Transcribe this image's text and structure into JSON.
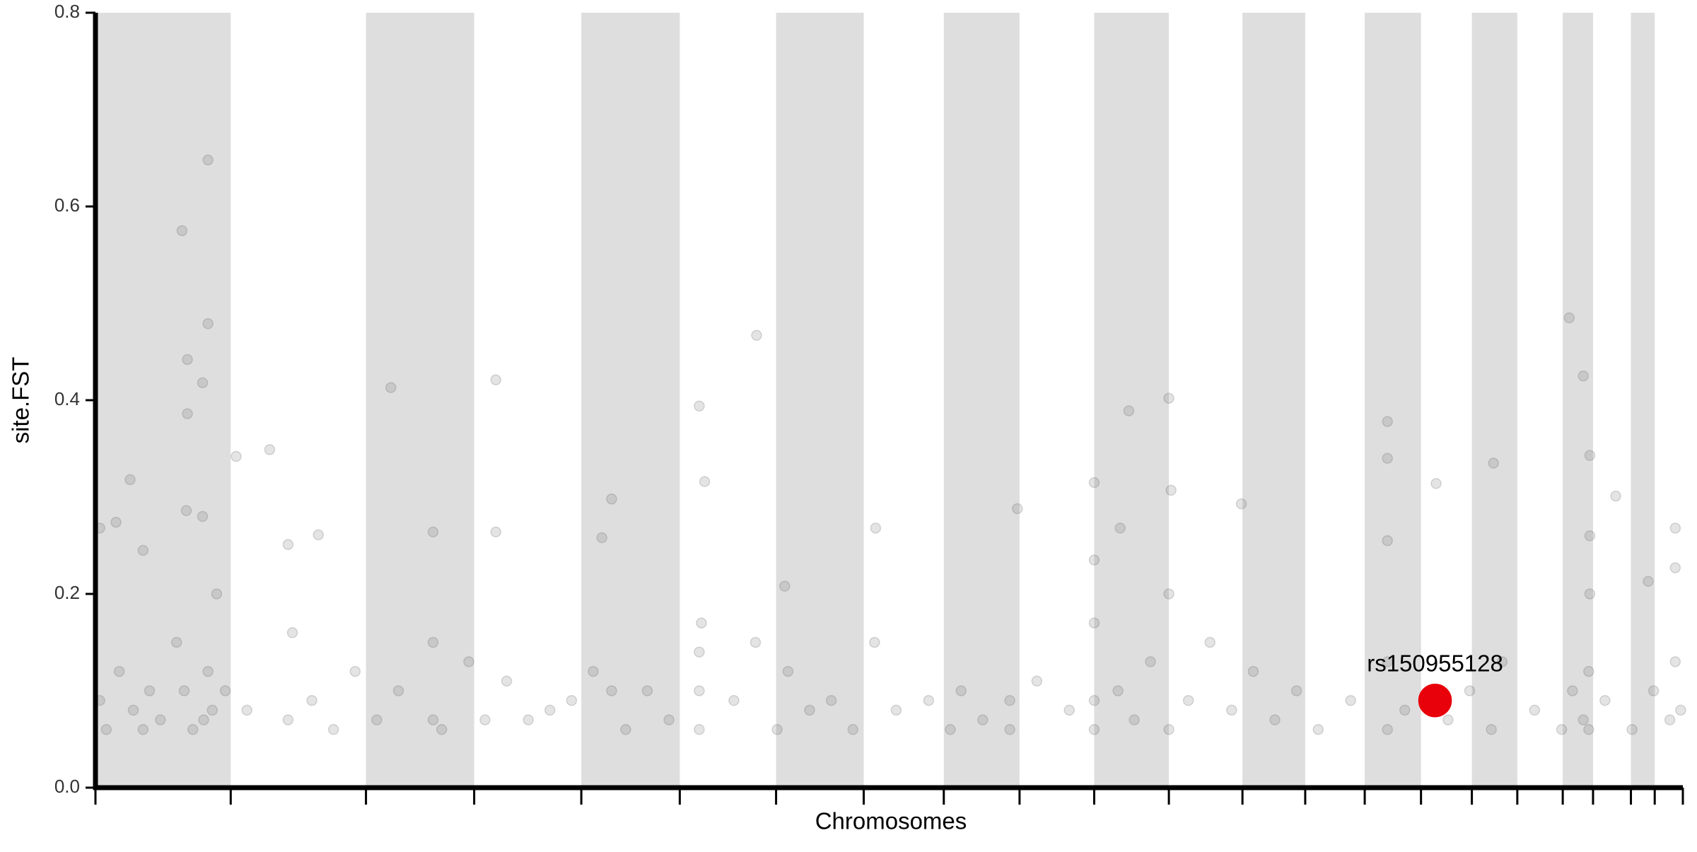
{
  "chart_data": {
    "type": "scatter",
    "ylabel": "site.FST",
    "xlabel": "Chromosomes",
    "xlim": [
      0,
      1467
    ],
    "xticks": [
      0,
      125,
      250,
      350,
      449,
      540,
      629,
      710,
      784,
      854,
      923,
      992,
      1060,
      1118,
      1173,
      1225,
      1272,
      1314,
      1356,
      1384,
      1419,
      1441,
      1467
    ],
    "ylim": [
      0,
      0.8
    ],
    "yticks": [
      {
        "value": 0,
        "label": "0.0"
      },
      0.2,
      0.4,
      0.6,
      0.8
    ],
    "band_color": "#dedede",
    "series": [
      {
        "color": "#555555",
        "x": [
          80,
          104,
          104,
          85,
          99,
          85,
          84,
          99,
          32,
          19,
          4,
          44,
          130,
          161,
          178,
          206,
          273,
          312,
          370,
          370,
          477,
          468,
          558,
          563,
          611,
          637,
          721,
          852,
          923,
          955,
          992,
          994,
          1059,
          1194,
          1194,
          1239,
          1292,
          1362,
          1375,
          1381,
          1405,
          1460,
          1460,
          1435,
          947,
          923,
          1194,
          4,
          10,
          22,
          35,
          44,
          50,
          60,
          75,
          82,
          90,
          100,
          104,
          108,
          112,
          120,
          140,
          178,
          182,
          200,
          220,
          240,
          260,
          280,
          312,
          312,
          320,
          345,
          360,
          380,
          400,
          420,
          440,
          460,
          477,
          490,
          510,
          530,
          558,
          558,
          558,
          560,
          590,
          610,
          630,
          640,
          660,
          680,
          700,
          720,
          740,
          770,
          790,
          800,
          820,
          845,
          845,
          870,
          900,
          923,
          923,
          923,
          945,
          960,
          975,
          992,
          992,
          1010,
          1030,
          1050,
          1070,
          1090,
          1110,
          1130,
          1160,
          1194,
          1194,
          1210,
          1250,
          1270,
          1290,
          1300,
          1330,
          1355,
          1365,
          1375,
          1380,
          1380,
          1381,
          1381,
          1395,
          1420,
          1440,
          1455,
          1460,
          1465
        ],
        "values": [
          0.575,
          0.648,
          0.479,
          0.442,
          0.418,
          0.386,
          0.286,
          0.28,
          0.318,
          0.274,
          0.268,
          0.245,
          0.342,
          0.349,
          0.251,
          0.261,
          0.413,
          0.264,
          0.421,
          0.264,
          0.298,
          0.258,
          0.394,
          0.316,
          0.467,
          0.208,
          0.268,
          0.288,
          0.315,
          0.389,
          0.402,
          0.307,
          0.293,
          0.378,
          0.34,
          0.314,
          0.335,
          0.485,
          0.425,
          0.343,
          0.301,
          0.268,
          0.227,
          0.213,
          0.268,
          0.235,
          0.255,
          0.09,
          0.06,
          0.12,
          0.08,
          0.06,
          0.1,
          0.07,
          0.15,
          0.1,
          0.06,
          0.07,
          0.12,
          0.08,
          0.2,
          0.1,
          0.08,
          0.07,
          0.16,
          0.09,
          0.06,
          0.12,
          0.07,
          0.1,
          0.07,
          0.15,
          0.06,
          0.13,
          0.07,
          0.11,
          0.07,
          0.08,
          0.09,
          0.12,
          0.1,
          0.06,
          0.1,
          0.07,
          0.06,
          0.1,
          0.14,
          0.17,
          0.09,
          0.15,
          0.06,
          0.12,
          0.08,
          0.09,
          0.06,
          0.15,
          0.08,
          0.09,
          0.06,
          0.1,
          0.07,
          0.06,
          0.09,
          0.11,
          0.08,
          0.06,
          0.09,
          0.17,
          0.1,
          0.07,
          0.13,
          0.06,
          0.2,
          0.09,
          0.15,
          0.08,
          0.12,
          0.07,
          0.1,
          0.06,
          0.09,
          0.06,
          0.13,
          0.08,
          0.07,
          0.1,
          0.06,
          0.13,
          0.08,
          0.06,
          0.1,
          0.07,
          0.06,
          0.12,
          0.2,
          0.26,
          0.09,
          0.06,
          0.1,
          0.07,
          0.13,
          0.08
        ]
      },
      {
        "color": "#e8000b",
        "x": [
          1238
        ],
        "values": [
          0.09
        ],
        "labels": [
          "rs150955128"
        ]
      }
    ]
  }
}
